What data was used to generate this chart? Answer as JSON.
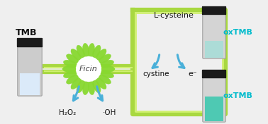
{
  "bg_color": "#efefef",
  "tmb_label": "TMB",
  "ficin_label": "Ficin",
  "h2o2_label": "H₂O₂",
  "oh_label": "·OH",
  "lcys_label": "L-cysteine",
  "cystine_label": "cystine",
  "e_label": "e⁻",
  "oxtmb_label": "oxTMB",
  "arrow_color": "#4ab0d9",
  "green_outer": "#a8d840",
  "green_inner": "#d0f070",
  "ficin_petal": "#88d830",
  "ficin_center": "#ffffff",
  "cap_color": "#1a1a1a",
  "body_color": "#cccccc",
  "body_edge": "#999999",
  "liq_clear": "#ddeeff",
  "liq_light_blue": "#a8ddd8",
  "liq_teal": "#40c8b0",
  "oxtmb_color": "#00bbcc",
  "text_dark": "#111111",
  "ficin_text": "#444444",
  "white": "#ffffff"
}
